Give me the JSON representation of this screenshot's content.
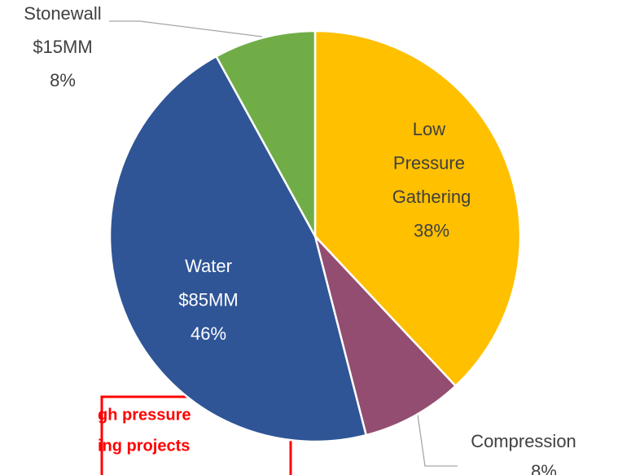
{
  "chart_data": {
    "type": "pie",
    "categories": [
      "Low Pressure Gathering",
      "Compression",
      "Water",
      "Stonewall"
    ],
    "values": [
      38,
      8,
      46,
      8
    ],
    "value_labels": [
      "38%",
      "8%",
      "46%",
      "8%"
    ],
    "amount_labels": [
      null,
      null,
      "$85MM",
      "$15MM"
    ],
    "colors": [
      "#FFC000",
      "#934D70",
      "#2F5597",
      "#70AD47"
    ],
    "annotation_lines": [
      "gh pressure",
      "ing projects"
    ]
  }
}
